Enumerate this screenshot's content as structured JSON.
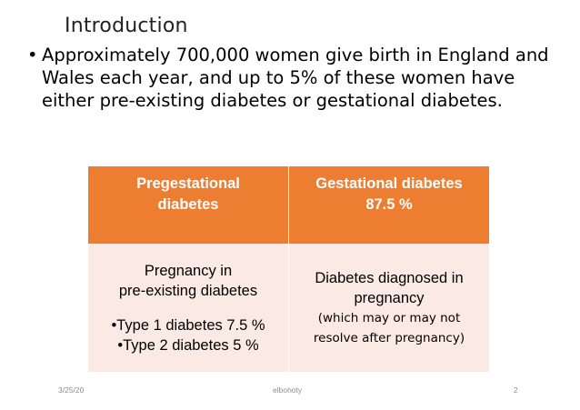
{
  "slide": {
    "title": "Introduction",
    "bullet": {
      "marker": "•",
      "text": "Approximately 700,000 women give birth in England and Wales each year, and up to 5% of these women have either pre-existing diabetes or gestational diabetes."
    },
    "table": {
      "headers": [
        {
          "line1": "Pregestational",
          "line2": "diabetes"
        },
        {
          "line1": "Gestational diabetes",
          "line2": "87.5 %"
        }
      ],
      "left_cell": {
        "line1": "Pregnancy in",
        "line2": "pre-existing diabetes",
        "item1": "•Type 1 diabetes 7.5 %",
        "item2": "•Type 2 diabetes 5 %"
      },
      "right_cell": {
        "line1": "Diabetes diagnosed in",
        "line2": "pregnancy",
        "line3": "(which may or may not",
        "line4": "resolve after pregnancy)"
      },
      "colors": {
        "header_bg": "#ed7d31",
        "body_bg": "#fbeae4"
      }
    },
    "footer": {
      "date": "3/25/20",
      "author": "elbohoty",
      "page": "2"
    }
  }
}
